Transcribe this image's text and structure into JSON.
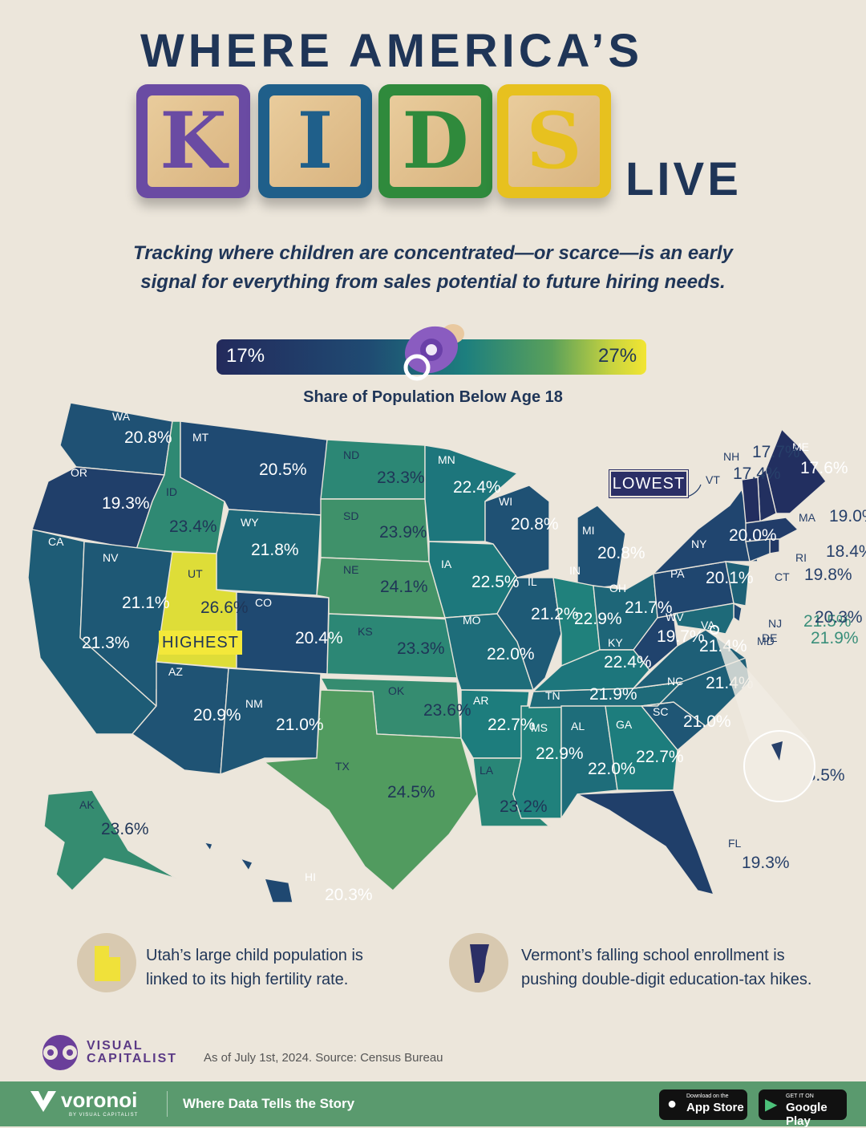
{
  "title": {
    "top": "WHERE AMERICA’S",
    "blocks": [
      "K",
      "I",
      "D",
      "S"
    ],
    "bottom": "LIVE"
  },
  "subtitle": "Tracking where children are concentrated—or scarce—is an early signal for everything from sales potential to future hiring needs.",
  "legend": {
    "min": "17%",
    "max": "27%",
    "label": "Share of Population Below Age 18",
    "icon": "pacifier-icon"
  },
  "badges": {
    "lowest": "LOWEST",
    "highest": "HIGHEST"
  },
  "colors": {
    "low": "#232a5c",
    "mid": "#1d7f7e",
    "high": "#f2e532",
    "background": "#ece6db",
    "block_k": "#6a4ba3",
    "block_i": "#1f5f8a",
    "block_d": "#2f8a3c",
    "block_s": "#e7c11f"
  },
  "chart_data": {
    "type": "choropleth",
    "metric": "Share of Population Below Age 18",
    "scale": [
      17,
      27
    ],
    "states": [
      {
        "abbr": "WA",
        "value": "20.8%"
      },
      {
        "abbr": "OR",
        "value": "19.3%"
      },
      {
        "abbr": "CA",
        "value": "21.3%"
      },
      {
        "abbr": "ID",
        "value": "23.4%"
      },
      {
        "abbr": "NV",
        "value": "21.1%"
      },
      {
        "abbr": "MT",
        "value": "20.5%"
      },
      {
        "abbr": "WY",
        "value": "21.8%"
      },
      {
        "abbr": "UT",
        "value": "26.6%"
      },
      {
        "abbr": "CO",
        "value": "20.4%"
      },
      {
        "abbr": "AZ",
        "value": "20.9%"
      },
      {
        "abbr": "NM",
        "value": "21.0%"
      },
      {
        "abbr": "ND",
        "value": "23.3%"
      },
      {
        "abbr": "SD",
        "value": "23.9%"
      },
      {
        "abbr": "NE",
        "value": "24.1%"
      },
      {
        "abbr": "KS",
        "value": "23.3%"
      },
      {
        "abbr": "OK",
        "value": "23.6%"
      },
      {
        "abbr": "TX",
        "value": "24.5%"
      },
      {
        "abbr": "MN",
        "value": "22.4%"
      },
      {
        "abbr": "IA",
        "value": "22.5%"
      },
      {
        "abbr": "MO",
        "value": "22.0%"
      },
      {
        "abbr": "AR",
        "value": "22.7%"
      },
      {
        "abbr": "LA",
        "value": "23.2%"
      },
      {
        "abbr": "WI",
        "value": "20.8%"
      },
      {
        "abbr": "IL",
        "value": "21.2%"
      },
      {
        "abbr": "MS",
        "value": "22.9%"
      },
      {
        "abbr": "MI",
        "value": "20.8%"
      },
      {
        "abbr": "IN",
        "value": "22.9%"
      },
      {
        "abbr": "OH",
        "value": "21.7%"
      },
      {
        "abbr": "KY",
        "value": "22.4%"
      },
      {
        "abbr": "TN",
        "value": "21.9%"
      },
      {
        "abbr": "AL",
        "value": "22.0%"
      },
      {
        "abbr": "GA",
        "value": "22.7%"
      },
      {
        "abbr": "FL",
        "value": "19.3%"
      },
      {
        "abbr": "SC",
        "value": "21.0%"
      },
      {
        "abbr": "NC",
        "value": "21.4%"
      },
      {
        "abbr": "VA",
        "value": "21.4%"
      },
      {
        "abbr": "WV",
        "value": "19.7%"
      },
      {
        "abbr": "PA",
        "value": "20.1%"
      },
      {
        "abbr": "NY",
        "value": "20.0%"
      },
      {
        "abbr": "ME",
        "value": "17.6%"
      },
      {
        "abbr": "NH",
        "value": "17.7%"
      },
      {
        "abbr": "VT",
        "value": "17.4%"
      },
      {
        "abbr": "MA",
        "value": "19.0%"
      },
      {
        "abbr": "RI",
        "value": "18.4%"
      },
      {
        "abbr": "CT",
        "value": "19.8%"
      },
      {
        "abbr": "NJ",
        "value": "21.5%"
      },
      {
        "abbr": "DE",
        "value": "20.3%"
      },
      {
        "abbr": "MD",
        "value": "21.9%"
      },
      {
        "abbr": "DC",
        "value": "18.5%"
      },
      {
        "abbr": "AK",
        "value": "23.6%"
      },
      {
        "abbr": "HI",
        "value": "20.3%"
      }
    ]
  },
  "notes": [
    {
      "text": "Utah’s large child population is linked to its high fertility rate.",
      "icon": "utah-shape-icon"
    },
    {
      "text": "Vermont’s falling school enrollment is pushing double-digit education-tax hikes.",
      "icon": "vermont-shape-icon"
    }
  ],
  "brand": {
    "name_line1": "VISUAL",
    "name_line2": "CAPITALIST",
    "source": "As of July 1st, 2024. Source: Census Bureau"
  },
  "footer": {
    "logo": "voronoi",
    "logo_sub": "BY VISUAL CAPITALIST",
    "tagline": "Where Data Tells the Story",
    "appstore_small": "Download on the",
    "appstore_big": "App Store",
    "play_small": "GET IT ON",
    "play_big": "Google Play"
  }
}
